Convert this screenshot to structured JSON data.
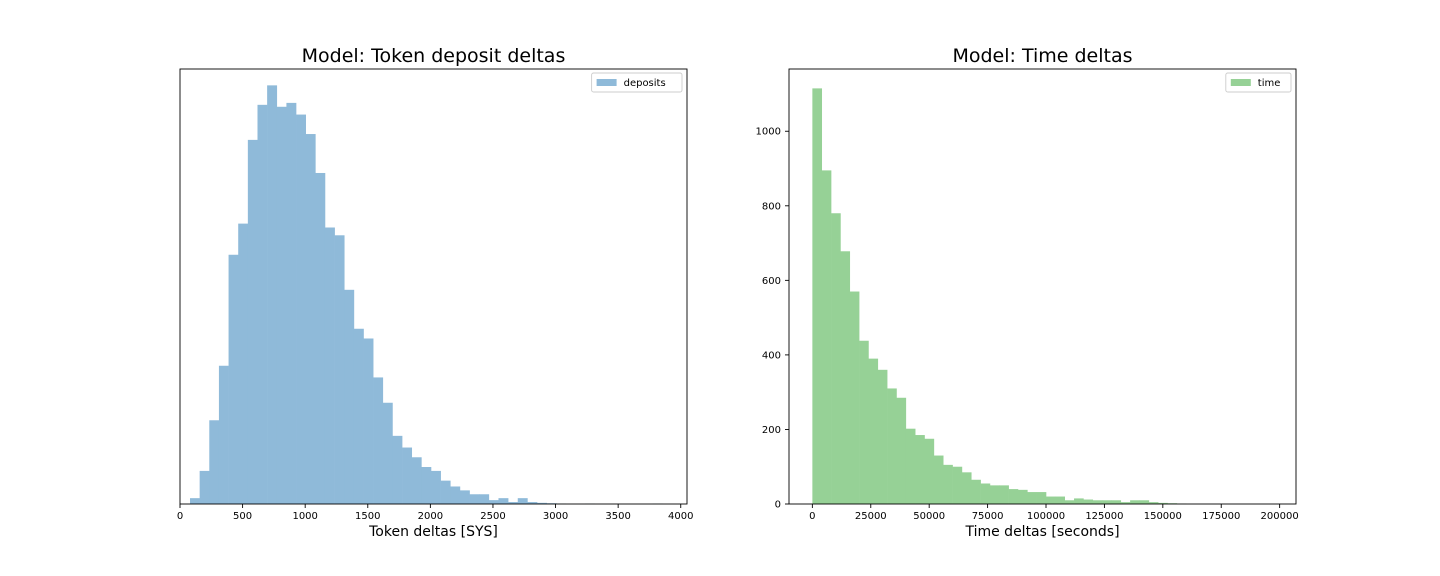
{
  "chart_data": [
    {
      "type": "bar",
      "histogram": true,
      "title": "Model: Token deposit deltas",
      "xlabel": "Token deltas [SYS]",
      "ylabel": "",
      "xlim": [
        0,
        4050
      ],
      "ylim": [
        0,
        1117
      ],
      "xticks": [
        0,
        500,
        1000,
        1500,
        2000,
        2500,
        3000,
        3500,
        4000
      ],
      "yticks": [],
      "legend": {
        "placement": "top-right",
        "entries": [
          "deposits"
        ]
      },
      "grid": false,
      "series": [
        {
          "name": "deposits",
          "color": "#8fbad9",
          "bin_start": 80,
          "bin_width": 77,
          "values": [
            15,
            85,
            215,
            355,
            640,
            720,
            935,
            1025,
            1075,
            1020,
            1030,
            1000,
            950,
            850,
            710,
            690,
            550,
            450,
            425,
            325,
            260,
            175,
            145,
            120,
            95,
            85,
            60,
            45,
            35,
            25,
            25,
            10,
            15,
            5,
            15,
            5,
            3,
            2,
            1,
            0,
            0,
            1,
            0,
            0,
            0,
            0,
            0,
            0,
            1
          ]
        }
      ]
    },
    {
      "type": "bar",
      "histogram": true,
      "title": "Model: Time deltas",
      "xlabel": "Time deltas [seconds]",
      "ylabel": "",
      "xlim": [
        -10000,
        207000
      ],
      "ylim": [
        0,
        1167
      ],
      "xticks": [
        0,
        25000,
        50000,
        75000,
        100000,
        125000,
        150000,
        175000,
        200000
      ],
      "yticks": [
        0,
        200,
        400,
        600,
        800,
        1000
      ],
      "legend": {
        "placement": "top-right",
        "entries": [
          "time"
        ]
      },
      "grid": false,
      "series": [
        {
          "name": "time",
          "color": "#96d196",
          "bin_start": 0,
          "bin_width": 4000,
          "values": [
            1115,
            895,
            780,
            678,
            570,
            438,
            390,
            360,
            310,
            285,
            202,
            185,
            175,
            130,
            105,
            100,
            85,
            65,
            55,
            50,
            50,
            40,
            38,
            32,
            32,
            20,
            20,
            10,
            15,
            12,
            10,
            10,
            10,
            5,
            10,
            10,
            5,
            3,
            2,
            1
          ]
        }
      ]
    }
  ]
}
